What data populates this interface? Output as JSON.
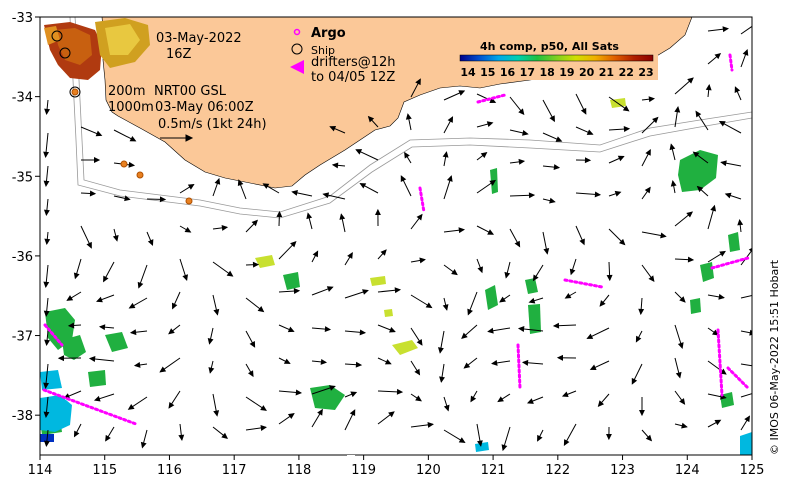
{
  "map": {
    "x_ticks": [
      "114",
      "115",
      "116",
      "117",
      "118",
      "119",
      "120",
      "121",
      "122",
      "123",
      "124",
      "125"
    ],
    "y_ticks": [
      "-33",
      "-34",
      "-35",
      "-36",
      "-37",
      "-38"
    ],
    "x_range": [
      114,
      125
    ],
    "y_range": [
      -38.5,
      -33
    ],
    "land_color": "#fbc898",
    "depth_contours": [
      "200m",
      "1000m"
    ]
  },
  "info": {
    "date": "03-May-2022",
    "hour": "16Z",
    "depth_200": "200m",
    "depth_1000": "1000m",
    "product": "NRT00 GSL",
    "product_time": "03-May 06:00Z",
    "scale_label": "0.5m/s (1kt 24h)"
  },
  "legend": {
    "argo": "Argo",
    "ship": "Ship",
    "drifters_line1": "drifters@12h",
    "drifters_line2": "to 04/05 12Z",
    "argo_color": "#ff00ff",
    "drifter_color": "#ff00ff"
  },
  "colorbar": {
    "title": "4h comp, p50, All Sats",
    "labels": [
      "14",
      "15",
      "16",
      "17",
      "18",
      "19",
      "20",
      "21",
      "22",
      "23"
    ],
    "colors": [
      "#00008b",
      "#0050d0",
      "#00a8e8",
      "#00d0b0",
      "#20c040",
      "#80d020",
      "#d0e000",
      "#f0b000",
      "#e06000",
      "#b02000",
      "#8b0000"
    ]
  },
  "credit": "© IMOS 06-May-2022 15:51 Hobart"
}
